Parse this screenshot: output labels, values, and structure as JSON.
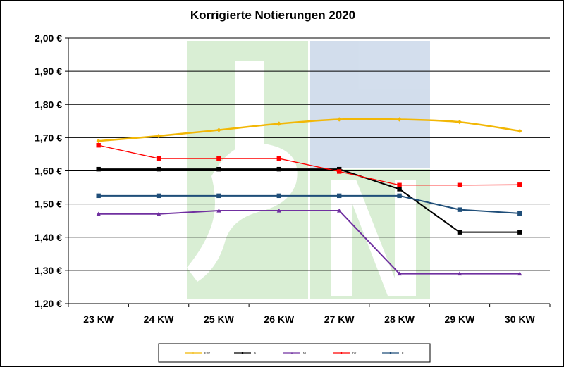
{
  "chart_data": {
    "type": "line",
    "title": "Korrigierte Notierungen 2020",
    "xlabel": "",
    "ylabel": "",
    "categories": [
      "23 KW",
      "24 KW",
      "25 KW",
      "26 KW",
      "27 KW",
      "28 KW",
      "29 KW",
      "30 KW"
    ],
    "yticks": [
      "1,20 €",
      "1,30 €",
      "1,40 €",
      "1,50 €",
      "1,60 €",
      "1,70 €",
      "1,80 €",
      "1,90 €",
      "2,00 €"
    ],
    "ylim": [
      1.2,
      2.0
    ],
    "grid": true,
    "legend_position": "bottom",
    "series": [
      {
        "name": "EXP",
        "color": "#F2B705",
        "marker": "diamond",
        "values": [
          1.69,
          1.705,
          1.723,
          1.742,
          1.755,
          1.755,
          1.747,
          1.72
        ]
      },
      {
        "name": "D",
        "color": "#000000",
        "marker": "square",
        "values": [
          1.605,
          1.605,
          1.605,
          1.605,
          1.605,
          1.545,
          1.415,
          1.415
        ]
      },
      {
        "name": "NL",
        "color": "#7030A0",
        "marker": "triangle",
        "values": [
          1.47,
          1.47,
          1.48,
          1.48,
          1.48,
          1.29,
          1.29,
          1.29
        ]
      },
      {
        "name": "DK",
        "color": "#FF0000",
        "marker": "square",
        "values": [
          1.677,
          1.637,
          1.637,
          1.637,
          1.598,
          1.557,
          1.557,
          1.558
        ]
      },
      {
        "name": "F",
        "color": "#1F4E79",
        "marker": "square",
        "values": [
          1.525,
          1.525,
          1.525,
          1.525,
          1.525,
          1.525,
          1.483,
          1.472
        ]
      }
    ]
  }
}
